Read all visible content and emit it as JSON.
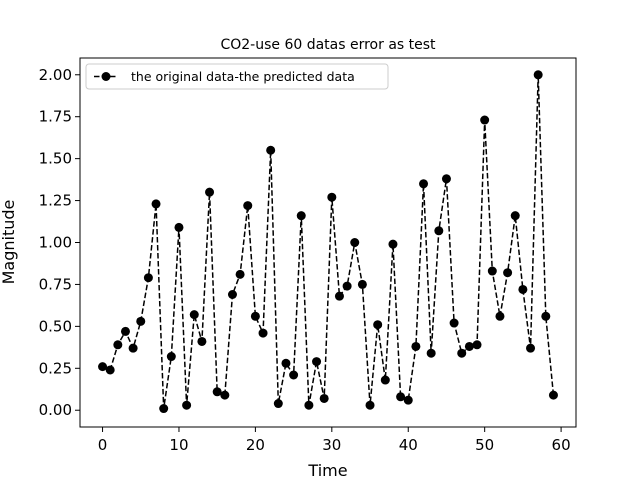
{
  "chart_data": {
    "type": "line",
    "title": "CO2-use 60 datas error as test",
    "xlabel": "Time",
    "ylabel": "Magnitude",
    "xlim": [
      -2.95,
      61.95
    ],
    "ylim": [
      -0.1,
      2.1
    ],
    "xticks": [
      0,
      10,
      20,
      30,
      40,
      50,
      60
    ],
    "xtick_labels": [
      "0",
      "10",
      "20",
      "30",
      "40",
      "50",
      "60"
    ],
    "yticks": [
      0.0,
      0.25,
      0.5,
      0.75,
      1.0,
      1.25,
      1.5,
      1.75,
      2.0
    ],
    "ytick_labels": [
      "0.00",
      "0.25",
      "0.50",
      "0.75",
      "1.00",
      "1.25",
      "1.50",
      "1.75",
      "2.00"
    ],
    "grid": false,
    "legend_position": "top-left",
    "series": [
      {
        "name": "the original data-the predicted data",
        "color": "#000000",
        "line_style": "dashed",
        "marker": "circle",
        "x": [
          0,
          1,
          2,
          3,
          4,
          5,
          6,
          7,
          8,
          9,
          10,
          11,
          12,
          13,
          14,
          15,
          16,
          17,
          18,
          19,
          20,
          21,
          22,
          23,
          24,
          25,
          26,
          27,
          28,
          29,
          30,
          31,
          32,
          33,
          34,
          35,
          36,
          37,
          38,
          39,
          40,
          41,
          42,
          43,
          44,
          45,
          46,
          47,
          48,
          49,
          50,
          51,
          52,
          53,
          54,
          55,
          56,
          57,
          58,
          59
        ],
        "y": [
          0.26,
          0.24,
          0.39,
          0.47,
          0.37,
          0.53,
          0.79,
          1.23,
          0.01,
          0.32,
          1.09,
          0.03,
          0.57,
          0.41,
          1.3,
          0.11,
          0.09,
          0.69,
          0.81,
          1.22,
          0.56,
          0.46,
          1.55,
          0.04,
          0.28,
          0.21,
          1.16,
          0.03,
          0.29,
          0.07,
          1.27,
          0.68,
          0.74,
          1.0,
          0.75,
          0.03,
          0.51,
          0.18,
          0.99,
          0.08,
          0.06,
          0.38,
          1.35,
          0.34,
          1.07,
          1.38,
          0.52,
          0.34,
          0.38,
          0.39,
          1.73,
          0.83,
          0.56,
          0.82,
          1.16,
          0.72,
          0.37,
          2.0,
          0.56,
          0.09
        ]
      }
    ]
  }
}
